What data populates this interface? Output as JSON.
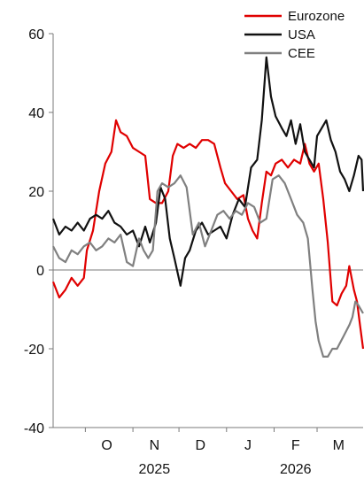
{
  "chart_data": {
    "type": "line",
    "title": "",
    "xlabel": "",
    "ylabel": "",
    "ylim": [
      -40,
      60
    ],
    "xlim": [
      "2025-09-10",
      "2026-03-31"
    ],
    "y_ticks": [
      "60",
      "40",
      "20",
      "0",
      "-20",
      "-40"
    ],
    "x_month_labels": [
      {
        "label": "O",
        "date": "2025-10-15"
      },
      {
        "label": "N",
        "date": "2025-11-15"
      },
      {
        "label": "D",
        "date": "2025-12-15"
      },
      {
        "label": "J",
        "date": "2026-01-15"
      },
      {
        "label": "F",
        "date": "2026-02-15"
      },
      {
        "label": "M",
        "date": "2026-03-15"
      }
    ],
    "x_year_labels": [
      {
        "label": "2025",
        "date": "2025-11-15"
      },
      {
        "label": "2026",
        "date": "2026-02-15"
      }
    ],
    "grid": false,
    "zero_line": true,
    "legend": "top-right",
    "series": [
      {
        "name": "Eurozone",
        "color": "#e00000",
        "points": [
          [
            "2025-09-10",
            -3
          ],
          [
            "2025-09-14",
            -7
          ],
          [
            "2025-09-18",
            -5
          ],
          [
            "2025-09-22",
            -2
          ],
          [
            "2025-09-26",
            -4
          ],
          [
            "2025-09-30",
            -2
          ],
          [
            "2025-10-02",
            5
          ],
          [
            "2025-10-06",
            10
          ],
          [
            "2025-10-10",
            20
          ],
          [
            "2025-10-14",
            27
          ],
          [
            "2025-10-18",
            30
          ],
          [
            "2025-10-21",
            38
          ],
          [
            "2025-10-24",
            35
          ],
          [
            "2025-10-28",
            34
          ],
          [
            "2025-11-01",
            31
          ],
          [
            "2025-11-05",
            30
          ],
          [
            "2025-11-09",
            29
          ],
          [
            "2025-11-12",
            18
          ],
          [
            "2025-11-16",
            17
          ],
          [
            "2025-11-20",
            17
          ],
          [
            "2025-11-24",
            20
          ],
          [
            "2025-11-27",
            29
          ],
          [
            "2025-11-30",
            32
          ],
          [
            "2025-12-04",
            31
          ],
          [
            "2025-12-08",
            32
          ],
          [
            "2025-12-12",
            31
          ],
          [
            "2025-12-16",
            33
          ],
          [
            "2025-12-20",
            33
          ],
          [
            "2025-12-24",
            32
          ],
          [
            "2025-12-28",
            26
          ],
          [
            "2025-12-31",
            22
          ],
          [
            "2026-01-04",
            20
          ],
          [
            "2026-01-08",
            18
          ],
          [
            "2026-01-12",
            19
          ],
          [
            "2026-01-15",
            13
          ],
          [
            "2026-01-18",
            10
          ],
          [
            "2026-01-21",
            8
          ],
          [
            "2026-01-24",
            17
          ],
          [
            "2026-01-27",
            25
          ],
          [
            "2026-01-30",
            24
          ],
          [
            "2026-02-02",
            27
          ],
          [
            "2026-02-06",
            28
          ],
          [
            "2026-02-10",
            26
          ],
          [
            "2026-02-14",
            28
          ],
          [
            "2026-02-18",
            27
          ],
          [
            "2026-02-21",
            32
          ],
          [
            "2026-02-24",
            27
          ],
          [
            "2026-02-27",
            25
          ],
          [
            "2026-03-02",
            27
          ],
          [
            "2026-03-05",
            18
          ],
          [
            "2026-03-08",
            7
          ],
          [
            "2026-03-11",
            -8
          ],
          [
            "2026-03-14",
            -9
          ],
          [
            "2026-03-17",
            -6
          ],
          [
            "2026-03-20",
            -4
          ],
          [
            "2026-03-22",
            1
          ],
          [
            "2026-03-25",
            -5
          ],
          [
            "2026-03-27",
            -8
          ],
          [
            "2026-03-29",
            -14
          ],
          [
            "2026-03-31",
            -20
          ]
        ]
      },
      {
        "name": "USA",
        "color": "#111111",
        "points": [
          [
            "2025-09-10",
            13
          ],
          [
            "2025-09-14",
            9
          ],
          [
            "2025-09-18",
            11
          ],
          [
            "2025-09-22",
            10
          ],
          [
            "2025-09-26",
            12
          ],
          [
            "2025-09-30",
            10
          ],
          [
            "2025-10-04",
            13
          ],
          [
            "2025-10-08",
            14
          ],
          [
            "2025-10-12",
            13
          ],
          [
            "2025-10-16",
            15
          ],
          [
            "2025-10-20",
            12
          ],
          [
            "2025-10-24",
            11
          ],
          [
            "2025-10-28",
            9
          ],
          [
            "2025-11-01",
            10
          ],
          [
            "2025-11-05",
            6
          ],
          [
            "2025-11-09",
            11
          ],
          [
            "2025-11-12",
            7
          ],
          [
            "2025-11-16",
            12
          ],
          [
            "2025-11-19",
            21
          ],
          [
            "2025-11-22",
            18
          ],
          [
            "2025-11-25",
            8
          ],
          [
            "2025-11-28",
            3
          ],
          [
            "2025-12-02",
            -4
          ],
          [
            "2025-12-05",
            3
          ],
          [
            "2025-12-08",
            5
          ],
          [
            "2025-12-12",
            10
          ],
          [
            "2025-12-16",
            12
          ],
          [
            "2025-12-20",
            9
          ],
          [
            "2025-12-24",
            10
          ],
          [
            "2025-12-28",
            11
          ],
          [
            "2026-01-01",
            8
          ],
          [
            "2026-01-05",
            14
          ],
          [
            "2026-01-09",
            18
          ],
          [
            "2026-01-13",
            16
          ],
          [
            "2026-01-17",
            26
          ],
          [
            "2026-01-21",
            28
          ],
          [
            "2026-01-24",
            38
          ],
          [
            "2026-01-27",
            54
          ],
          [
            "2026-01-30",
            44
          ],
          [
            "2026-02-02",
            39
          ],
          [
            "2026-02-06",
            36
          ],
          [
            "2026-02-09",
            34
          ],
          [
            "2026-02-12",
            38
          ],
          [
            "2026-02-15",
            32
          ],
          [
            "2026-02-18",
            37
          ],
          [
            "2026-02-21",
            30
          ],
          [
            "2026-02-24",
            28
          ],
          [
            "2026-02-27",
            26
          ],
          [
            "2026-03-01",
            34
          ],
          [
            "2026-03-04",
            36
          ],
          [
            "2026-03-07",
            38
          ],
          [
            "2026-03-10",
            33
          ],
          [
            "2026-03-13",
            30
          ],
          [
            "2026-03-16",
            25
          ],
          [
            "2026-03-19",
            23
          ],
          [
            "2026-03-22",
            20
          ],
          [
            "2026-03-25",
            24
          ],
          [
            "2026-03-28",
            29
          ],
          [
            "2026-03-30",
            28
          ],
          [
            "2026-03-31",
            20
          ]
        ]
      },
      {
        "name": "CEE",
        "color": "#808080",
        "points": [
          [
            "2025-09-10",
            6
          ],
          [
            "2025-09-14",
            3
          ],
          [
            "2025-09-18",
            2
          ],
          [
            "2025-09-22",
            5
          ],
          [
            "2025-09-26",
            4
          ],
          [
            "2025-09-30",
            6
          ],
          [
            "2025-10-04",
            7
          ],
          [
            "2025-10-08",
            5
          ],
          [
            "2025-10-12",
            6
          ],
          [
            "2025-10-16",
            8
          ],
          [
            "2025-10-20",
            7
          ],
          [
            "2025-10-24",
            9
          ],
          [
            "2025-10-28",
            2
          ],
          [
            "2025-11-01",
            1
          ],
          [
            "2025-11-05",
            8
          ],
          [
            "2025-11-08",
            5
          ],
          [
            "2025-11-11",
            3
          ],
          [
            "2025-11-14",
            5
          ],
          [
            "2025-11-17",
            20
          ],
          [
            "2025-11-20",
            22
          ],
          [
            "2025-11-24",
            21
          ],
          [
            "2025-11-28",
            22
          ],
          [
            "2025-12-02",
            24
          ],
          [
            "2025-12-06",
            21
          ],
          [
            "2025-12-10",
            9
          ],
          [
            "2025-12-14",
            12
          ],
          [
            "2025-12-18",
            6
          ],
          [
            "2025-12-22",
            10
          ],
          [
            "2025-12-26",
            14
          ],
          [
            "2025-12-30",
            15
          ],
          [
            "2026-01-03",
            13
          ],
          [
            "2026-01-07",
            15
          ],
          [
            "2026-01-11",
            14
          ],
          [
            "2026-01-15",
            17
          ],
          [
            "2026-01-19",
            16
          ],
          [
            "2026-01-23",
            12
          ],
          [
            "2026-01-27",
            13
          ],
          [
            "2026-01-31",
            23
          ],
          [
            "2026-02-04",
            24
          ],
          [
            "2026-02-08",
            22
          ],
          [
            "2026-02-12",
            18
          ],
          [
            "2026-02-16",
            14
          ],
          [
            "2026-02-20",
            12
          ],
          [
            "2026-02-23",
            8
          ],
          [
            "2026-02-26",
            -5
          ],
          [
            "2026-02-28",
            -13
          ],
          [
            "2026-03-02",
            -18
          ],
          [
            "2026-03-05",
            -22
          ],
          [
            "2026-03-08",
            -22
          ],
          [
            "2026-03-11",
            -20
          ],
          [
            "2026-03-14",
            -20
          ],
          [
            "2026-03-18",
            -17
          ],
          [
            "2026-03-22",
            -14
          ],
          [
            "2026-03-24",
            -12
          ],
          [
            "2026-03-26",
            -8
          ],
          [
            "2026-03-28",
            -9
          ],
          [
            "2026-03-31",
            -11
          ]
        ]
      }
    ]
  }
}
